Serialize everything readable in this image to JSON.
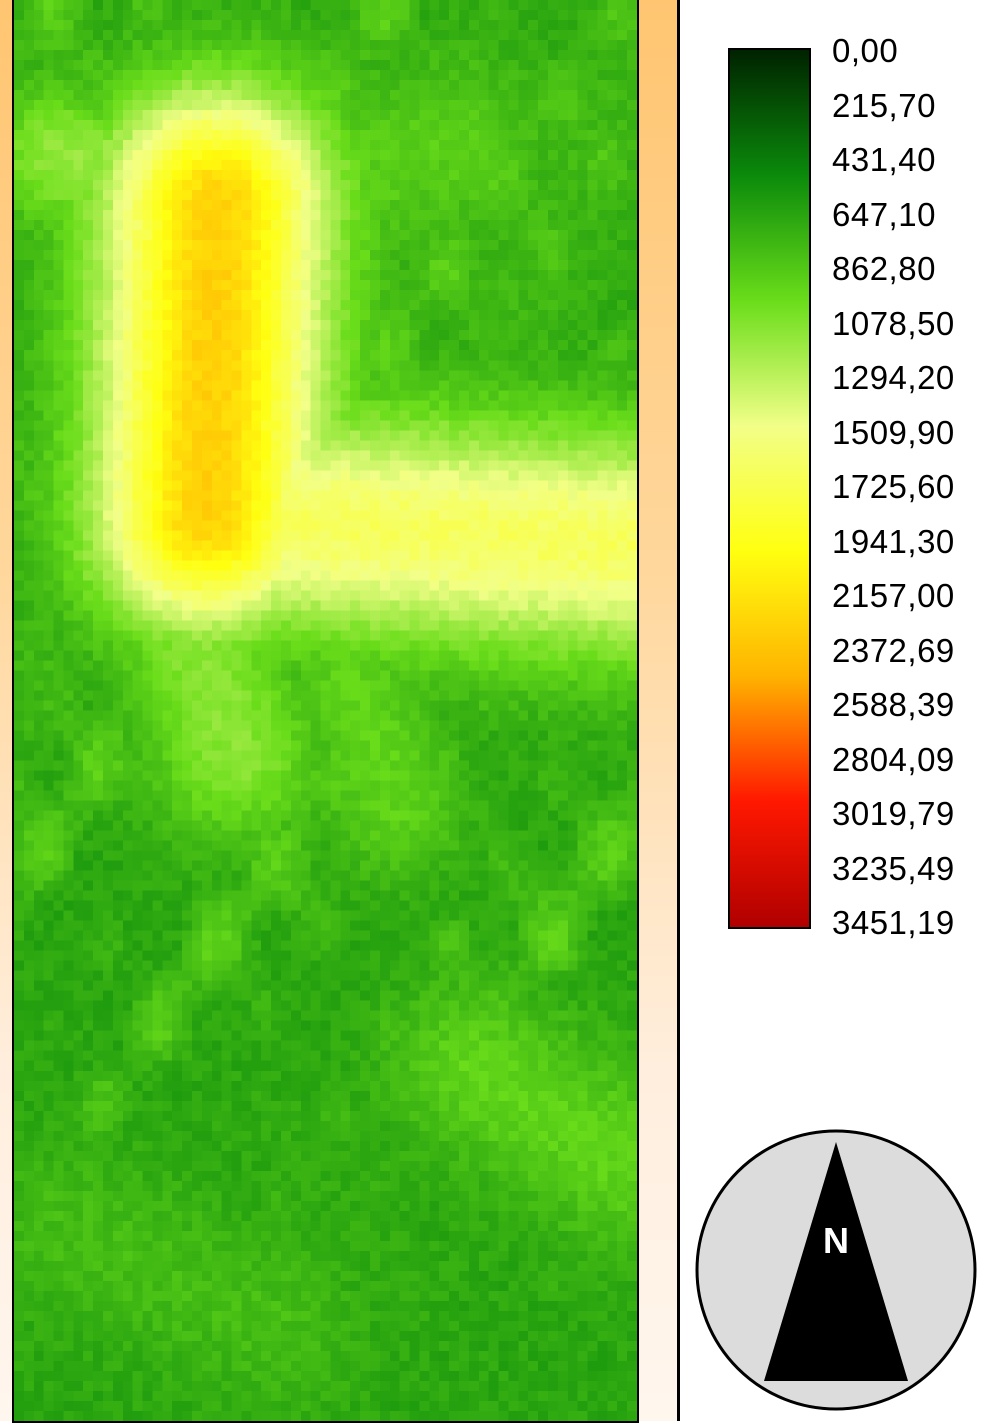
{
  "legend": {
    "ramp_colors": [
      "#002200",
      "#0b8a0b",
      "#6add1a",
      "#f2ff88",
      "#ffff10",
      "#ffb300",
      "#ff1800",
      "#b00000"
    ],
    "labels": [
      "0,00",
      "215,70",
      "431,40",
      "647,10",
      "862,80",
      "1078,50",
      "1294,20",
      "1509,90",
      "1725,60",
      "1941,30",
      "2157,00",
      "2372,69",
      "2588,39",
      "2804,09",
      "3019,79",
      "3235,49",
      "3451,19"
    ]
  },
  "north_arrow": {
    "icon": "north-arrow-icon",
    "label": "N"
  }
}
